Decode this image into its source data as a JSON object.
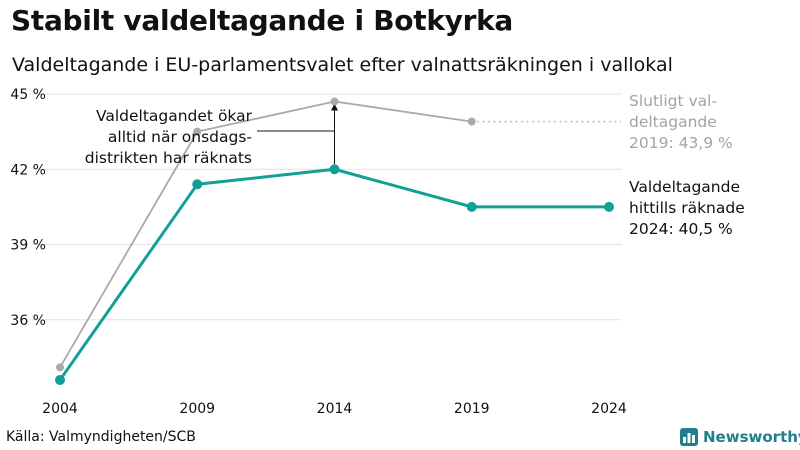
{
  "title": "Stabilt valdeltagande i Botkyrka",
  "subtitle": "Valdeltagande i EU-parlamentsvalet efter valnattsräkningen i vallokal",
  "source": "Källa: Valmyndigheten/SCB",
  "brand": "Newsworthy",
  "colors": {
    "teal": "#12a096",
    "grey": "#aaaaaa",
    "final_label": "#a3a3a3",
    "brand": "#1f7f8c"
  },
  "chart_data": {
    "type": "line",
    "x": [
      2004,
      2009,
      2014,
      2019,
      2024
    ],
    "y_ticks": [
      36,
      39,
      42,
      45
    ],
    "y_tick_labels": [
      "36 %",
      "39 %",
      "42 %",
      "45 %"
    ],
    "x_tick_labels": [
      "2004",
      "2009",
      "2014",
      "2019",
      "2024"
    ],
    "ylim": [
      33,
      45
    ],
    "grid": true,
    "series": [
      {
        "name": "Slutligt valdeltagande",
        "values": [
          34.1,
          43.5,
          44.7,
          43.9,
          null
        ],
        "color": "#aaaaaa",
        "dotted_extension_to": 2024
      },
      {
        "name": "Valdeltagande hittills räknade",
        "values": [
          33.6,
          41.4,
          42.0,
          40.5,
          40.5
        ],
        "color": "#12a096"
      }
    ],
    "annotations": [
      {
        "id": "arrow_note",
        "lines": [
          "Valdeltagandet ökar",
          "alltid när onsdags-",
          "distrikten har räknats"
        ]
      },
      {
        "id": "final_label",
        "lines": [
          "Slutligt val-",
          "deltagande",
          "2019: 43,9 %"
        ]
      },
      {
        "id": "current_label",
        "lines": [
          "Valdeltagande",
          "hittills räknade",
          "2024: 40,5 %"
        ]
      }
    ]
  }
}
